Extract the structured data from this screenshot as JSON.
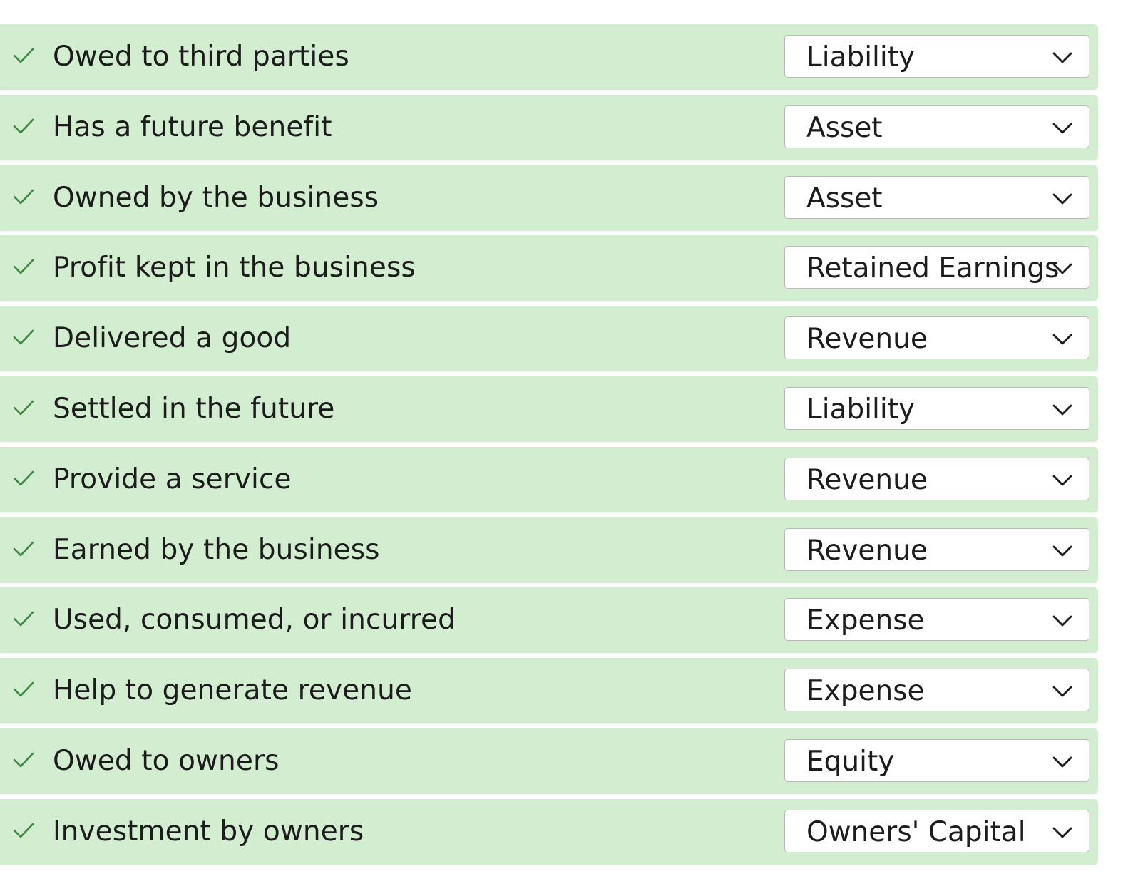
{
  "colors": {
    "row_correct_bg": "#d3edd0",
    "check_color": "#3b8a3e",
    "select_border": "#b9b9b9",
    "text": "#1c1c1c"
  },
  "icons": {
    "status": "checkmark-icon",
    "dropdown": "chevron-down-icon"
  },
  "rows": [
    {
      "statement": "Owed to third parties",
      "answer": "Liability",
      "status": "correct"
    },
    {
      "statement": "Has a future benefit",
      "answer": "Asset",
      "status": "correct"
    },
    {
      "statement": "Owned by the business",
      "answer": "Asset",
      "status": "correct"
    },
    {
      "statement": "Profit kept in the business",
      "answer": "Retained Earnings",
      "status": "correct"
    },
    {
      "statement": "Delivered a good",
      "answer": "Revenue",
      "status": "correct"
    },
    {
      "statement": "Settled in the future",
      "answer": "Liability",
      "status": "correct"
    },
    {
      "statement": "Provide a service",
      "answer": "Revenue",
      "status": "correct"
    },
    {
      "statement": "Earned by the business",
      "answer": "Revenue",
      "status": "correct"
    },
    {
      "statement": "Used, consumed, or incurred",
      "answer": "Expense",
      "status": "correct"
    },
    {
      "statement": "Help to generate revenue",
      "answer": "Expense",
      "status": "correct"
    },
    {
      "statement": "Owed to owners",
      "answer": "Equity",
      "status": "correct"
    },
    {
      "statement": "Investment by owners",
      "answer": "Owners' Capital",
      "status": "correct"
    }
  ]
}
